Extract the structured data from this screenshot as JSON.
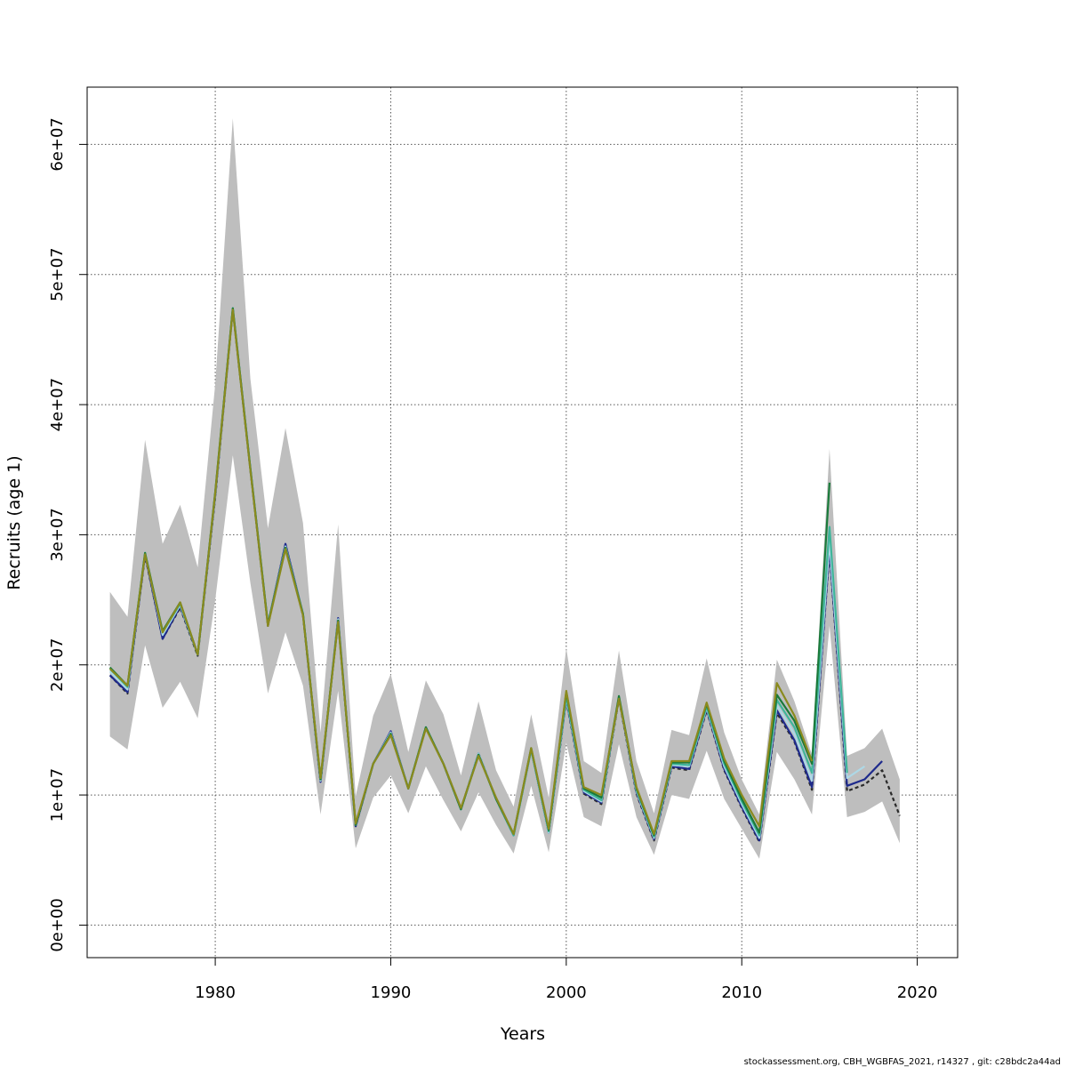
{
  "chart_data": {
    "type": "line",
    "title": "",
    "xlabel": "Years",
    "ylabel": "Recruits (age 1)",
    "xlim": [
      1972.7,
      2022.3
    ],
    "ylim": [
      -2500000,
      64400000
    ],
    "grid": true,
    "x_ticks": [
      1980,
      1990,
      2000,
      2010,
      2020
    ],
    "x_tick_labels": [
      "1980",
      "1990",
      "2000",
      "2010",
      "2020"
    ],
    "y_ticks": [
      0,
      10000000,
      20000000,
      30000000,
      40000000,
      50000000,
      60000000
    ],
    "y_tick_labels": [
      "0e+00",
      "1e+07",
      "2e+07",
      "3e+07",
      "4e+07",
      "5e+07",
      "6e+07"
    ],
    "band": {
      "color": "#bebebe",
      "x": [
        1974,
        1975,
        1976,
        1977,
        1978,
        1979,
        1980,
        1981,
        1982,
        1983,
        1984,
        1985,
        1986,
        1987,
        1988,
        1989,
        1990,
        1991,
        1992,
        1993,
        1994,
        1995,
        1996,
        1997,
        1998,
        1999,
        2000,
        2001,
        2002,
        2003,
        2004,
        2005,
        2006,
        2007,
        2008,
        2009,
        2010,
        2011,
        2012,
        2013,
        2014,
        2015,
        2016,
        2017,
        2018,
        2019
      ],
      "lower": [
        14500000,
        13500000,
        21500000,
        16700000,
        18700000,
        15900000,
        25000000,
        36100000,
        26300000,
        17800000,
        22500000,
        18400000,
        8500000,
        18000000,
        5900000,
        9800000,
        11500000,
        8600000,
        12200000,
        9600000,
        7200000,
        10200000,
        7700000,
        5500000,
        10700000,
        5600000,
        14000000,
        8300000,
        7600000,
        13900000,
        8300000,
        5400000,
        10000000,
        9700000,
        13400000,
        9700000,
        7400000,
        5100000,
        13300000,
        11200000,
        8500000,
        23000000,
        8300000,
        8700000,
        9500000,
        6300000
      ],
      "upper": [
        25600000,
        23700000,
        37300000,
        29300000,
        32300000,
        27500000,
        41600000,
        62000000,
        42000000,
        30500000,
        38200000,
        30900000,
        14800000,
        30800000,
        9900000,
        16100000,
        19300000,
        13300000,
        18800000,
        16200000,
        11500000,
        17200000,
        11900000,
        9100000,
        16200000,
        9800000,
        21300000,
        12600000,
        11700000,
        21100000,
        12600000,
        8600000,
        15000000,
        14600000,
        20500000,
        14800000,
        11200000,
        8500000,
        20400000,
        17200000,
        13100000,
        36600000,
        13000000,
        13600000,
        15100000,
        11200000
      ]
    },
    "series": [
      {
        "color": "#2a2a2a",
        "dashed": true,
        "x": [
          1974,
          1975,
          1976,
          1977,
          1978,
          1979,
          1980,
          1981,
          1982,
          1983,
          1984,
          1985,
          1986,
          1987,
          1988,
          1989,
          1990,
          1991,
          1992,
          1993,
          1994,
          1995,
          1996,
          1997,
          1998,
          1999,
          2000,
          2001,
          2002,
          2003,
          2004,
          2005,
          2006,
          2007,
          2008,
          2009,
          2010,
          2011,
          2012,
          2013,
          2014,
          2015,
          2016,
          2017,
          2018,
          2019
        ],
        "values": [
          19200000,
          17800000,
          28400000,
          22000000,
          24400000,
          20700000,
          32900000,
          47300000,
          35000000,
          23000000,
          29200000,
          23800000,
          11000000,
          23500000,
          7600000,
          12400000,
          14800000,
          10500000,
          15200000,
          12400000,
          8900000,
          13200000,
          9700000,
          6900000,
          13500000,
          7100000,
          17300000,
          10100000,
          9300000,
          17400000,
          10100000,
          6500000,
          12100000,
          11900000,
          16500000,
          11900000,
          9000000,
          6400000,
          16300000,
          14100000,
          10400000,
          28800000,
          10300000,
          10800000,
          11900000,
          8400000
        ]
      },
      {
        "color": "#1e2a8c",
        "dashed": false,
        "x": [
          1974,
          1975,
          1976,
          1977,
          1978,
          1979,
          1980,
          1981,
          1982,
          1983,
          1984,
          1985,
          1986,
          1987,
          1988,
          1989,
          1990,
          1991,
          1992,
          1993,
          1994,
          1995,
          1996,
          1997,
          1998,
          1999,
          2000,
          2001,
          2002,
          2003,
          2004,
          2005,
          2006,
          2007,
          2008,
          2009,
          2010,
          2011,
          2012,
          2013,
          2014,
          2015,
          2016,
          2017,
          2018
        ],
        "values": [
          19200000,
          17900000,
          28500000,
          22000000,
          24500000,
          20800000,
          33000000,
          47400000,
          35100000,
          23100000,
          29300000,
          23900000,
          11000000,
          23600000,
          7600000,
          12400000,
          14900000,
          10500000,
          15200000,
          12400000,
          8900000,
          13200000,
          9700000,
          6900000,
          13500000,
          7100000,
          17400000,
          10200000,
          9400000,
          17500000,
          10200000,
          6600000,
          12200000,
          12000000,
          16600000,
          12000000,
          9100000,
          6500000,
          16500000,
          14200000,
          10600000,
          29000000,
          10700000,
          11200000,
          12600000
        ]
      },
      {
        "color": "#add8e6",
        "dashed": false,
        "x": [
          1974,
          1975,
          1976,
          1977,
          1978,
          1979,
          1980,
          1981,
          1982,
          1983,
          1984,
          1985,
          1986,
          1987,
          1988,
          1989,
          1990,
          1991,
          1992,
          1993,
          1994,
          1995,
          1996,
          1997,
          1998,
          1999,
          2000,
          2001,
          2002,
          2003,
          2004,
          2005,
          2006,
          2007,
          2008,
          2009,
          2010,
          2011,
          2012,
          2013,
          2014,
          2015,
          2016,
          2017
        ],
        "values": [
          19500000,
          18100000,
          28600000,
          22300000,
          24600000,
          20800000,
          33100000,
          47400000,
          35100000,
          23100000,
          29100000,
          23900000,
          11100000,
          23500000,
          7700000,
          12400000,
          14800000,
          10500000,
          15200000,
          12400000,
          8900000,
          13200000,
          9700000,
          6900000,
          13500000,
          7100000,
          17500000,
          10300000,
          9500000,
          17500000,
          10300000,
          6700000,
          12300000,
          12200000,
          16700000,
          12200000,
          9300000,
          6700000,
          16900000,
          14700000,
          11100000,
          29500000,
          11300000,
          12200000
        ]
      },
      {
        "color": "#3fb59a",
        "dashed": false,
        "x": [
          1974,
          1975,
          1976,
          1977,
          1978,
          1979,
          1980,
          1981,
          1982,
          1983,
          1984,
          1985,
          1986,
          1987,
          1988,
          1989,
          1990,
          1991,
          1992,
          1993,
          1994,
          1995,
          1996,
          1997,
          1998,
          1999,
          2000,
          2001,
          2002,
          2003,
          2004,
          2005,
          2006,
          2007,
          2008,
          2009,
          2010,
          2011,
          2012,
          2013,
          2014,
          2015,
          2016
        ],
        "values": [
          19700000,
          18300000,
          28600000,
          22500000,
          24700000,
          20800000,
          33200000,
          47400000,
          35100000,
          23100000,
          29000000,
          23900000,
          11200000,
          23400000,
          7700000,
          12400000,
          14700000,
          10500000,
          15200000,
          12400000,
          8900000,
          13100000,
          9700000,
          6900000,
          13500000,
          7200000,
          17600000,
          10400000,
          9600000,
          17500000,
          10400000,
          6800000,
          12400000,
          12300000,
          16800000,
          12400000,
          9500000,
          6900000,
          17300000,
          15200000,
          11700000,
          30600000,
          11700000
        ]
      },
      {
        "color": "#1a7a3a",
        "dashed": false,
        "x": [
          1974,
          1975,
          1976,
          1977,
          1978,
          1979,
          1980,
          1981,
          1982,
          1983,
          1984,
          1985,
          1986,
          1987,
          1988,
          1989,
          1990,
          1991,
          1992,
          1993,
          1994,
          1995,
          1996,
          1997,
          1998,
          1999,
          2000,
          2001,
          2002,
          2003,
          2004,
          2005,
          2006,
          2007,
          2008,
          2009,
          2010,
          2011,
          2012,
          2013,
          2014,
          2015
        ],
        "values": [
          19800000,
          18400000,
          28600000,
          22600000,
          24800000,
          20800000,
          33300000,
          47400000,
          35100000,
          23100000,
          29000000,
          23900000,
          11200000,
          23400000,
          7700000,
          12400000,
          14700000,
          10500000,
          15200000,
          12400000,
          8900000,
          13100000,
          9700000,
          7000000,
          13600000,
          7300000,
          17900000,
          10500000,
          9800000,
          17600000,
          10500000,
          6900000,
          12500000,
          12500000,
          17000000,
          12600000,
          9700000,
          7100000,
          17700000,
          15700000,
          12400000,
          34000000
        ]
      },
      {
        "color": "#8a8a1e",
        "dashed": false,
        "x": [
          1974,
          1975,
          1976,
          1977,
          1978,
          1979,
          1980,
          1981,
          1982,
          1983,
          1984,
          1985,
          1986,
          1987,
          1988,
          1989,
          1990,
          1991,
          1992,
          1993,
          1994,
          1995,
          1996,
          1997,
          1998,
          1999,
          2000,
          2001,
          2002,
          2003,
          2004,
          2005,
          2006,
          2007,
          2008,
          2009,
          2010,
          2011,
          2012,
          2013,
          2014
        ],
        "values": [
          19700000,
          18400000,
          28500000,
          22500000,
          24800000,
          20800000,
          33200000,
          47300000,
          35000000,
          23000000,
          28900000,
          23800000,
          11300000,
          23300000,
          7800000,
          12400000,
          14600000,
          10500000,
          15100000,
          12400000,
          9000000,
          13000000,
          9800000,
          7000000,
          13600000,
          7400000,
          18000000,
          10600000,
          10000000,
          17400000,
          10600000,
          7000000,
          12600000,
          12600000,
          17100000,
          12800000,
          10000000,
          7600000,
          18600000,
          16100000,
          12600000
        ]
      }
    ]
  },
  "footer": {
    "credit": "stockassessment.org, CBH_WGBFAS_2021, r14327 , git: c28bdc2a44ad"
  }
}
